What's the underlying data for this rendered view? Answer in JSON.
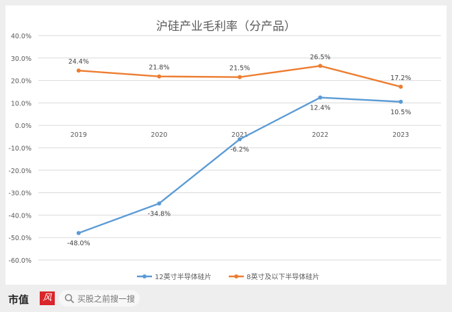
{
  "chart_data": {
    "type": "line",
    "title": "沪硅产业毛利率（分产品）",
    "categories": [
      "2019",
      "2020",
      "2021",
      "2022",
      "2023"
    ],
    "ylim": [
      -60,
      40
    ],
    "yticks": [
      "40.0%",
      "30.0%",
      "20.0%",
      "10.0%",
      "0.0%",
      "-10.0%",
      "-20.0%",
      "-30.0%",
      "-40.0%",
      "-50.0%",
      "-60.0%"
    ],
    "ytick_values": [
      40,
      30,
      20,
      10,
      0,
      -10,
      -20,
      -30,
      -40,
      -50,
      -60
    ],
    "grid": true,
    "legend_position": "bottom",
    "series": [
      {
        "name": "12英寸半导体硅片",
        "color": "#5b9bd5",
        "values": [
          -48.0,
          -34.8,
          -6.2,
          12.4,
          10.5
        ],
        "labels": [
          "-48.0%",
          "-34.8%",
          "-6.2%",
          "12.4%",
          "10.5%"
        ],
        "label_pos": "below"
      },
      {
        "name": "8英寸及以下半导体硅片",
        "color": "#ed7d31",
        "values": [
          24.4,
          21.8,
          21.5,
          26.5,
          17.2
        ],
        "labels": [
          "24.4%",
          "21.8%",
          "21.5%",
          "26.5%",
          "17.2%"
        ],
        "label_pos": "above"
      }
    ]
  },
  "footer": {
    "brand_text": "市值",
    "brand_box": "风",
    "search_text": "买股之前搜一搜"
  }
}
